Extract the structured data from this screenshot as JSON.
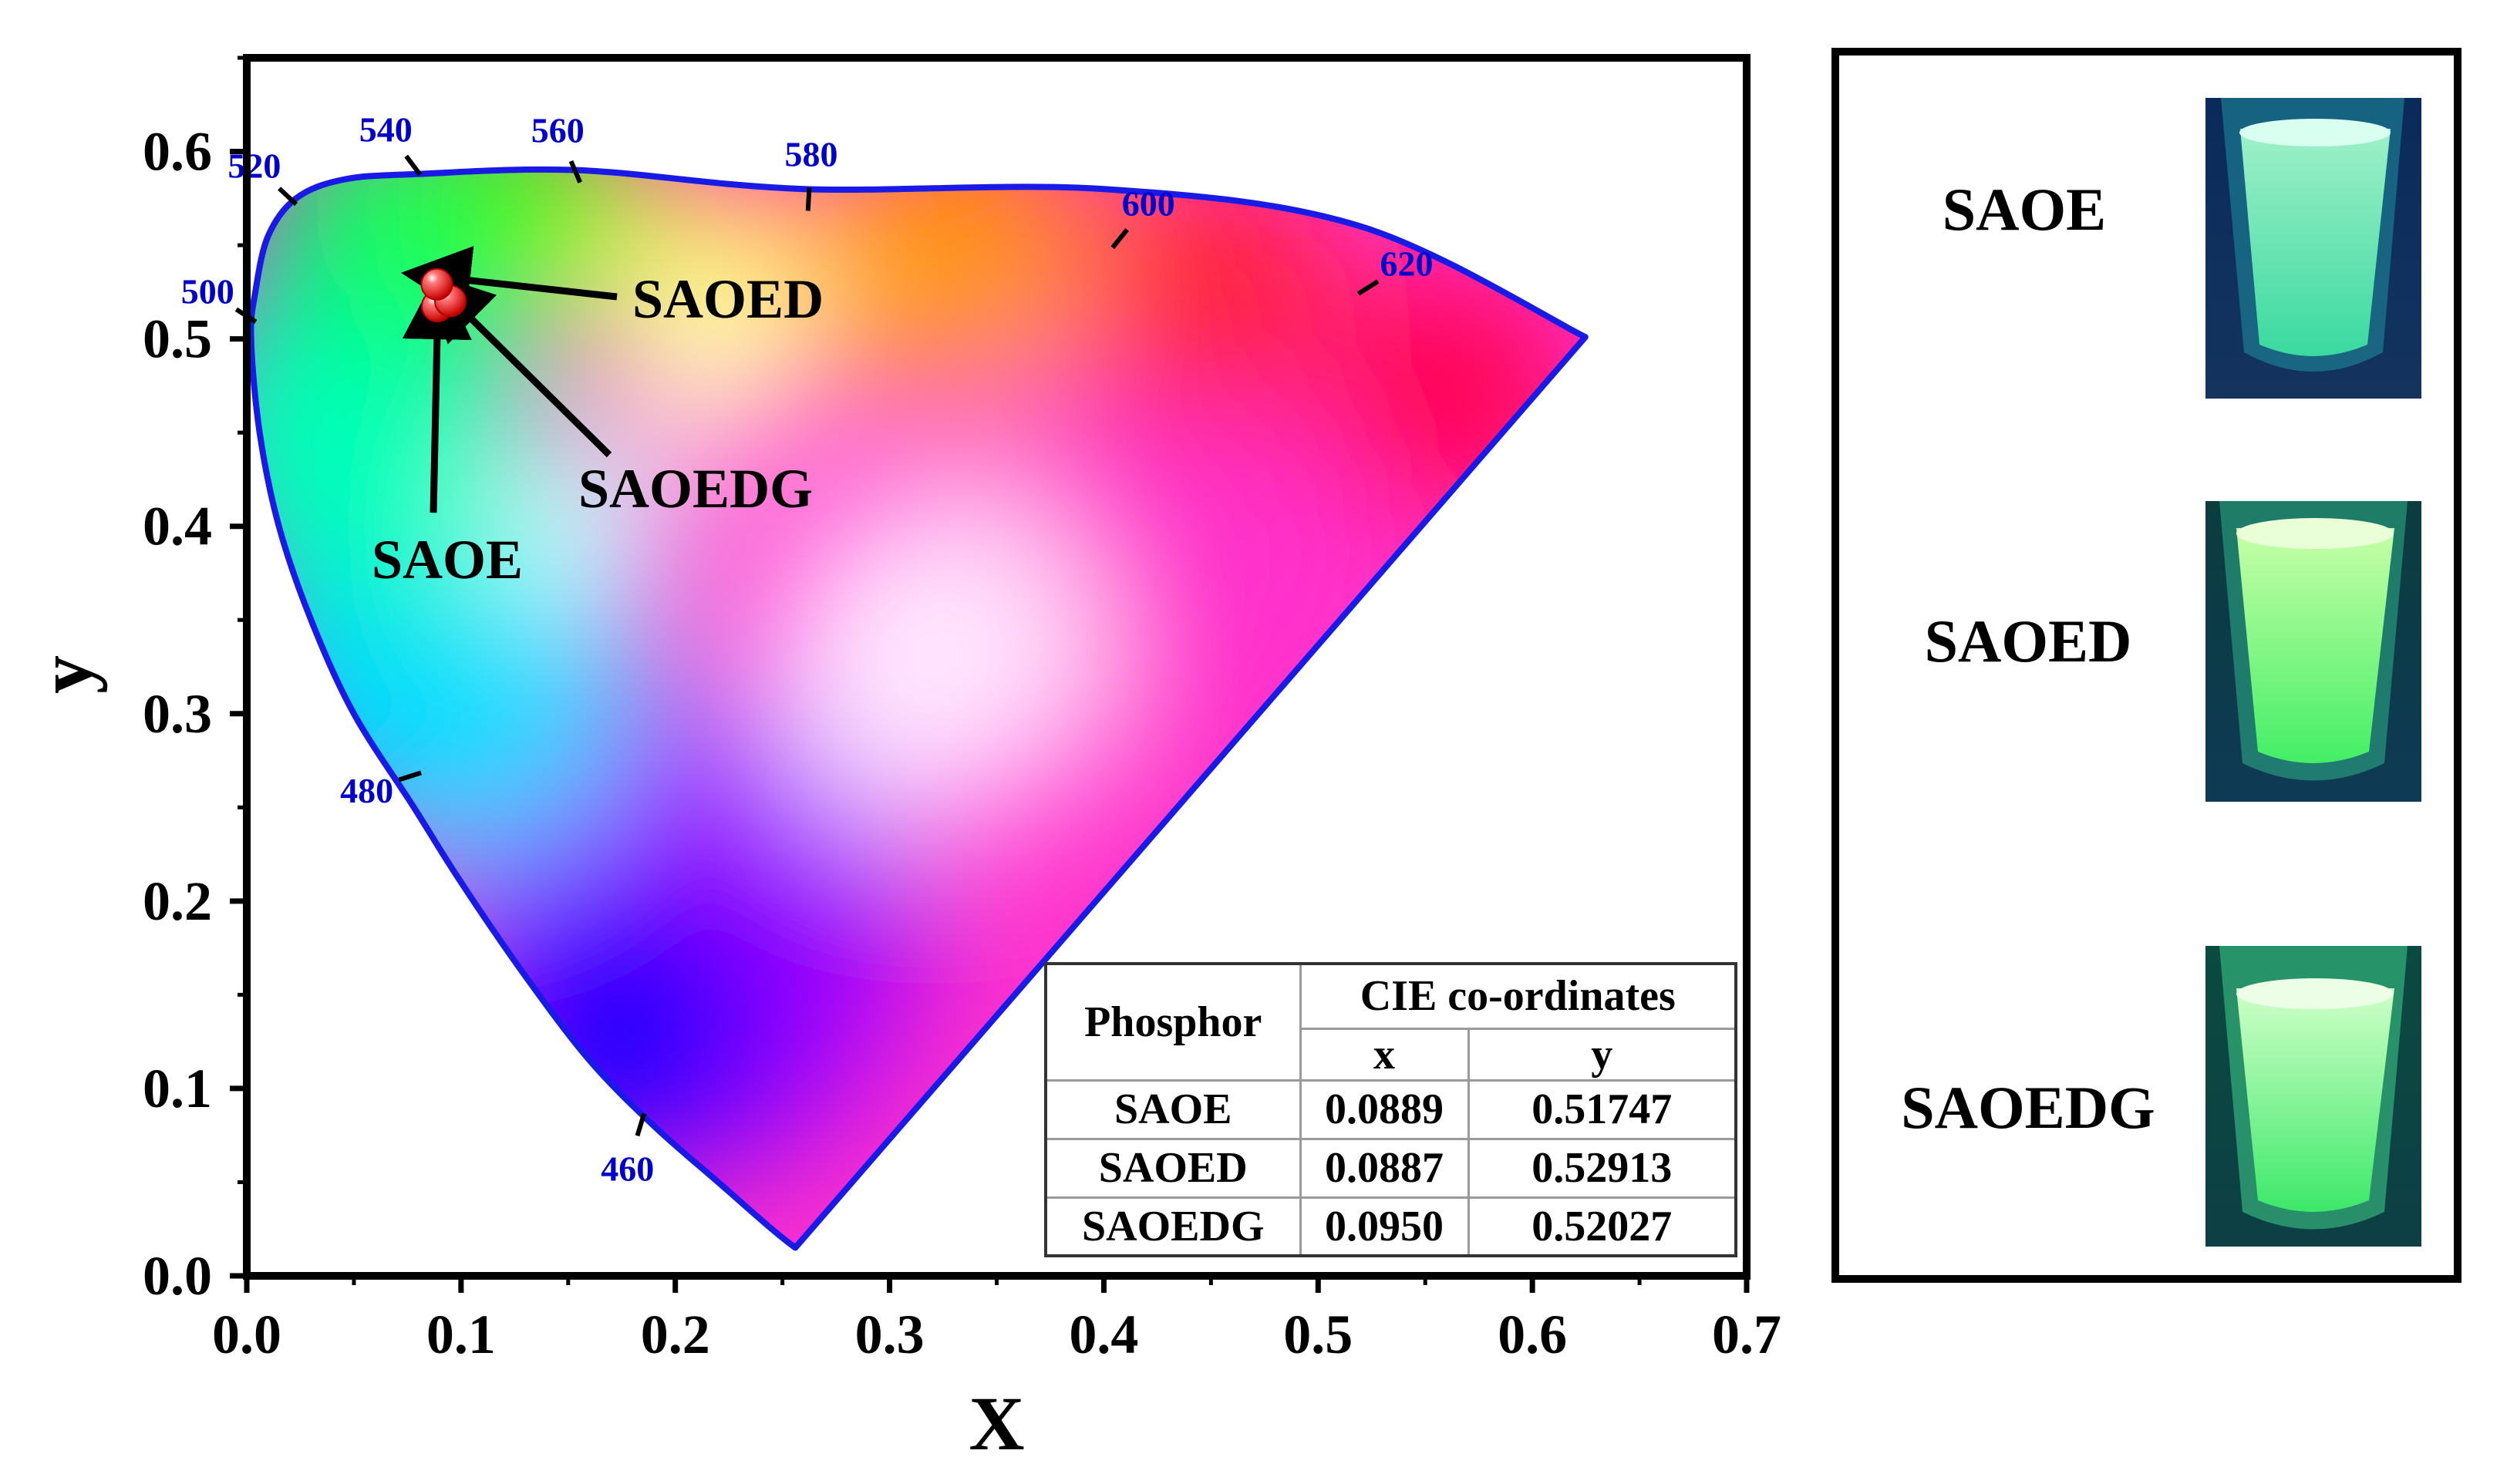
{
  "chart_data": {
    "type": "scatter",
    "title": "",
    "xlabel": "X",
    "ylabel": "y",
    "xlim": [
      0.0,
      0.7
    ],
    "ylim": [
      0.0,
      0.65
    ],
    "x_ticks": [
      "0.0",
      "0.1",
      "0.2",
      "0.3",
      "0.4",
      "0.5",
      "0.6",
      "0.7"
    ],
    "y_ticks": [
      "0.0",
      "0.1",
      "0.2",
      "0.3",
      "0.4",
      "0.5",
      "0.6"
    ],
    "grid": false,
    "series": [
      {
        "name": "SAOE",
        "x": [
          0.0889
        ],
        "y": [
          0.51747
        ],
        "color": "#e8141c"
      },
      {
        "name": "SAOED",
        "x": [
          0.0887
        ],
        "y": [
          0.52913
        ],
        "color": "#e8141c"
      },
      {
        "name": "SAOEDG",
        "x": [
          0.095
        ],
        "y": [
          0.52027
        ],
        "color": "#e8141c"
      }
    ],
    "spectral_locus": {
      "boundary_color": "#1a1ae6",
      "points": [
        [
          0.6247,
          0.501
        ],
        [
          0.52,
          0.56
        ],
        [
          0.4,
          0.58
        ],
        [
          0.26,
          0.58
        ],
        [
          0.155,
          0.59
        ],
        [
          0.08,
          0.588
        ],
        [
          0.045,
          0.585
        ],
        [
          0.023,
          0.575
        ],
        [
          0.01,
          0.555
        ],
        [
          0.004,
          0.525
        ],
        [
          0.002,
          0.5
        ],
        [
          0.006,
          0.45
        ],
        [
          0.015,
          0.4
        ],
        [
          0.03,
          0.35
        ],
        [
          0.05,
          0.3
        ],
        [
          0.078,
          0.25
        ],
        [
          0.1,
          0.21
        ],
        [
          0.13,
          0.16
        ],
        [
          0.16,
          0.115
        ],
        [
          0.19,
          0.08
        ],
        [
          0.22,
          0.05
        ],
        [
          0.245,
          0.025
        ],
        [
          0.256,
          0.015
        ]
      ],
      "wavelength_marks": [
        {
          "label": "460",
          "x": 0.185,
          "y": 0.085
        },
        {
          "label": "480",
          "x": 0.08,
          "y": 0.268
        },
        {
          "label": "500",
          "x": 0.003,
          "y": 0.51
        },
        {
          "label": "520",
          "x": 0.022,
          "y": 0.573
        },
        {
          "label": "540",
          "x": 0.08,
          "y": 0.589
        },
        {
          "label": "560",
          "x": 0.155,
          "y": 0.585
        },
        {
          "label": "580",
          "x": 0.262,
          "y": 0.57
        },
        {
          "label": "600",
          "x": 0.405,
          "y": 0.55
        },
        {
          "label": "620",
          "x": 0.52,
          "y": 0.525
        }
      ]
    },
    "annotations": [
      {
        "text": "SAOED",
        "target": "SAOED"
      },
      {
        "text": "SAOEDG",
        "target": "SAOEDG"
      },
      {
        "text": "SAOE",
        "target": "SAOE"
      }
    ],
    "colors": {
      "axis": "#000000",
      "locus": "#1a1ae6",
      "points": "#e8141c",
      "wavelength_text": "#0000cc"
    }
  },
  "table": {
    "header_phosphor": "Phosphor",
    "header_cie": "CIE co-ordinates",
    "header_x": "x",
    "header_y": "y",
    "rows": [
      {
        "name": "SAOE",
        "x": "0.0889",
        "y": "0.51747"
      },
      {
        "name": "SAOED",
        "x": "0.0887",
        "y": "0.52913"
      },
      {
        "name": "SAOEDG",
        "x": "0.0950",
        "y": "0.52027"
      }
    ]
  },
  "photo_panel": {
    "samples": [
      {
        "label": "SAOE"
      },
      {
        "label": "SAOED"
      },
      {
        "label": "SAOEDG"
      }
    ]
  }
}
